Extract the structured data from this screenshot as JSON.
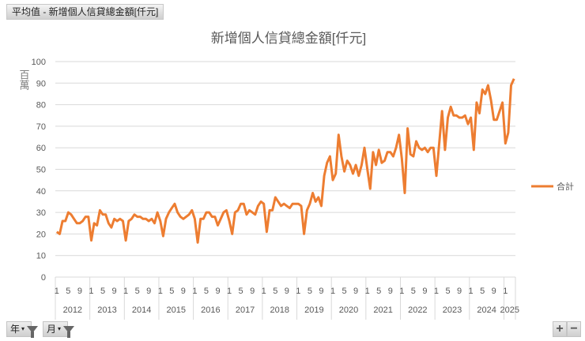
{
  "field_button": "平均值 - 新增個人信貸總金額[仟元]",
  "filters": [
    {
      "label": "年"
    },
    {
      "label": "月"
    }
  ],
  "expand_label": "+",
  "collapse_label": "−",
  "chart_data": {
    "type": "line",
    "title": "新增個人信貸總金額[仟元]",
    "ylabel": "百萬",
    "ylim": [
      0,
      100
    ],
    "yticks": [
      0,
      10,
      20,
      30,
      40,
      50,
      60,
      70,
      80,
      90,
      100
    ],
    "grid": true,
    "legend_placement": "right",
    "line_color": "#ED7D31",
    "month_tick_labels": [
      "1",
      "5",
      "9"
    ],
    "series": [
      {
        "name": "合計"
      }
    ],
    "years": [
      {
        "year": "2012",
        "values": [
          21,
          20,
          26,
          26,
          30,
          29,
          27,
          25,
          25,
          26,
          28,
          28
        ]
      },
      {
        "year": "2013",
        "values": [
          17,
          25,
          24,
          31,
          29,
          29,
          25,
          23,
          27,
          26,
          27,
          26
        ]
      },
      {
        "year": "2014",
        "values": [
          17,
          26,
          27,
          29,
          28,
          28,
          27,
          27,
          26,
          27,
          25,
          30
        ]
      },
      {
        "year": "2015",
        "values": [
          26,
          19,
          27,
          30,
          32,
          34,
          30,
          28,
          27,
          28,
          29,
          31
        ]
      },
      {
        "year": "2016",
        "values": [
          27,
          16,
          27,
          27,
          30,
          30,
          28,
          28,
          24,
          27,
          30,
          31
        ]
      },
      {
        "year": "2017",
        "values": [
          26,
          20,
          30,
          31,
          34,
          34,
          29,
          31,
          30,
          29,
          33,
          35
        ]
      },
      {
        "year": "2018",
        "values": [
          34,
          21,
          31,
          31,
          37,
          35,
          33,
          34,
          33,
          32,
          34,
          34
        ]
      },
      {
        "year": "2019",
        "values": [
          34,
          33,
          20,
          31,
          34,
          39,
          35,
          37,
          33,
          47,
          53,
          56
        ]
      },
      {
        "year": "2020",
        "values": [
          45,
          48,
          66,
          56,
          49,
          54,
          52,
          48,
          52,
          47,
          52,
          60
        ]
      },
      {
        "year": "2021",
        "values": [
          50,
          41,
          58,
          52,
          59,
          53,
          54,
          58,
          58,
          56,
          60,
          66
        ]
      },
      {
        "year": "2022",
        "values": [
          55,
          39,
          69,
          57,
          56,
          63,
          60,
          59,
          60,
          58,
          60,
          60
        ]
      },
      {
        "year": "2023",
        "values": [
          47,
          62,
          77,
          59,
          74,
          79,
          75,
          75,
          74,
          74,
          75,
          71
        ]
      },
      {
        "year": "2024",
        "values": [
          74,
          59,
          81,
          76,
          87,
          85,
          89,
          82,
          73,
          73,
          77,
          81
        ]
      },
      {
        "year": "2025",
        "values": [
          62,
          67,
          89,
          92
        ]
      }
    ]
  }
}
